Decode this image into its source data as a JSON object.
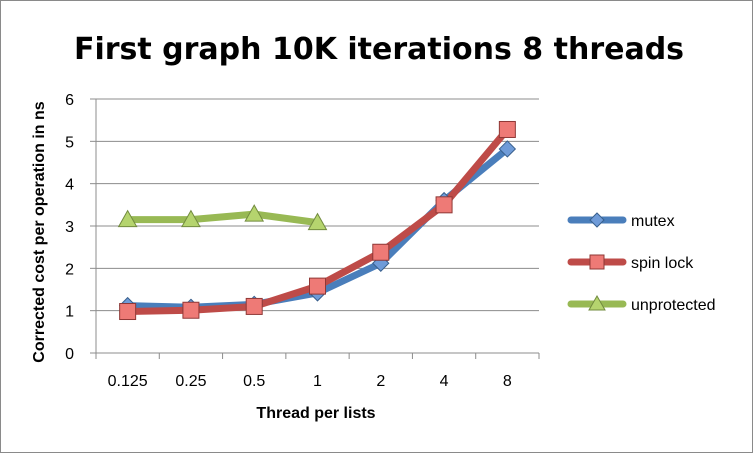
{
  "chart_data": {
    "type": "line",
    "title": "First graph 10K iterations 8 threads",
    "xlabel": "Thread per lists",
    "ylabel": "Corrected cost per operation in ns",
    "categories": [
      "0.125",
      "0.25",
      "0.5",
      "1",
      "2",
      "4",
      "8"
    ],
    "ylim": [
      0,
      6
    ],
    "yticks": [
      "0",
      "1",
      "2",
      "3",
      "4",
      "5",
      "6"
    ],
    "grid": "horizontal",
    "legend_position": "right",
    "series": [
      {
        "name": "mutex",
        "color": "#4a7ebb",
        "marker": "diamond",
        "marker_color": "#6f9bd8",
        "values": [
          1.12,
          1.08,
          1.15,
          1.42,
          2.12,
          3.6,
          4.82
        ]
      },
      {
        "name": "spin lock",
        "color": "#be4b48",
        "marker": "square",
        "marker_color": "#ee7a76",
        "values": [
          0.98,
          1.01,
          1.1,
          1.58,
          2.38,
          3.5,
          5.28
        ]
      },
      {
        "name": "unprotected",
        "color": "#98b954",
        "marker": "triangle",
        "marker_color": "#b5d46e",
        "values": [
          3.15,
          3.15,
          3.28,
          3.08,
          null,
          null,
          null
        ]
      }
    ]
  }
}
